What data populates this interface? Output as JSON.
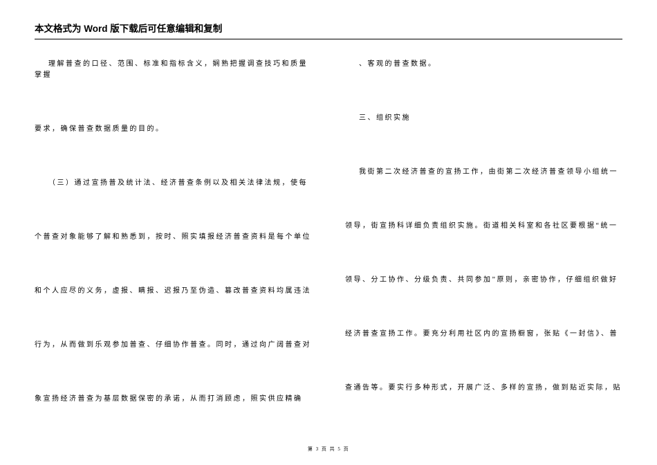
{
  "header": {
    "title": "本文格式为 Word 版下载后可任意编辑和复制"
  },
  "leftColumn": {
    "p1": "理解普查的口径、范围、标准和指标含义，娴熟把握调查技巧和质量掌握",
    "p2": "要求，确保普查数据质量的目的。",
    "p3": "（三）通过宣扬普及统计法、经济普查条例以及相关法律法规，使每",
    "p4": "个普查对象能够了解和熟悉到，按时、照实填报经济普查资料是每个单位",
    "p5": "和个人应尽的义务，虚报、瞒报、迟报乃至伪造、篡改普查资料均属违法",
    "p6": "行为，从而做到乐观参加普查、仔细协作普查。同时，通过向广阔普查对",
    "p7": "象宣扬经济普查为基层数据保密的承诺，从而打消顾虑，照实供应精确"
  },
  "rightColumn": {
    "p1": "、客观的普查数据。",
    "p2": "三、组织实施",
    "p3": "我街第二次经济普查的宣扬工作，由街第二次经济普查领导小组统一",
    "p4": "领导，街宣扬科详细负责组织实施。街道相关科室和各社区要根据“统一",
    "p5": "领导、分工协作、分级负责、共同参加”原则，亲密协作，仔细组织做好",
    "p6": "经济普查宣扬工作。要充分利用社区内的宣扬橱窗，张贴《一封信》、普",
    "p7": "查通告等。要实行多种形式，开展广泛、多样的宣扬，做到贴近实际，贴"
  },
  "footer": {
    "text": "第 3 页 共 5 页"
  },
  "style": {
    "background": "#ffffff",
    "textColor": "#000000",
    "headerFontSize": 13.5,
    "bodyFontSize": 10,
    "footerFontSize": 7,
    "bodyLetterSpacing": 2.5,
    "paragraphGap": 62,
    "columnGap": 48
  }
}
